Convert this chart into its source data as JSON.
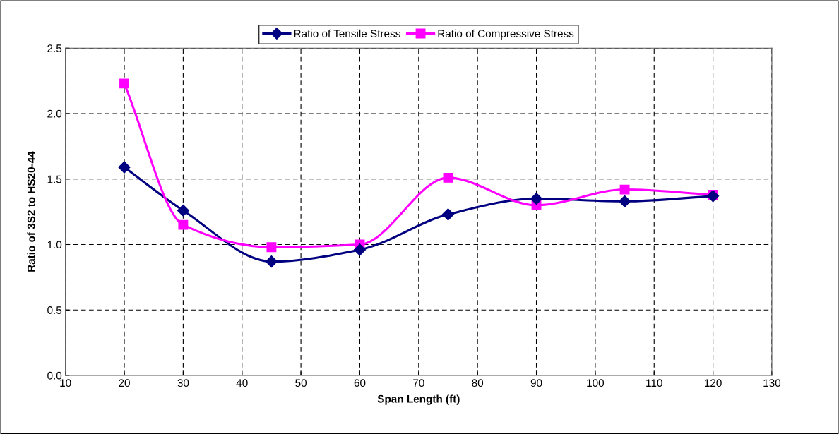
{
  "chart_data": {
    "type": "line",
    "xlabel": "Span Length (ft)",
    "ylabel": "Ratio of 3S2 to HS20-44",
    "x": [
      20,
      30,
      45,
      60,
      75,
      90,
      105,
      120
    ],
    "series": [
      {
        "name": "Ratio of Tensile Stress",
        "color": "#000080",
        "marker": "diamond",
        "values": [
          1.59,
          1.26,
          0.87,
          0.96,
          1.23,
          1.35,
          1.33,
          1.37
        ]
      },
      {
        "name": "Ratio of Compressive Stress",
        "color": "#ff00ff",
        "marker": "square",
        "values": [
          2.23,
          1.15,
          0.98,
          1.0,
          1.51,
          1.3,
          1.42,
          1.38
        ]
      }
    ],
    "xlim": [
      10,
      130
    ],
    "xticks": [
      10,
      20,
      30,
      40,
      50,
      60,
      70,
      80,
      90,
      100,
      110,
      120,
      130
    ],
    "ylim": [
      0,
      2.5
    ],
    "yticks": [
      {
        "value": 0,
        "label": "0.0"
      },
      {
        "value": 0.5,
        "label": "0.5"
      },
      {
        "value": 1,
        "label": "1.0"
      },
      {
        "value": 1.5,
        "label": "1.5"
      },
      {
        "value": 2,
        "label": "2.0"
      },
      {
        "value": 2.5,
        "label": "2.5"
      }
    ],
    "grid": true,
    "legend": "top",
    "line_style": "solid"
  }
}
